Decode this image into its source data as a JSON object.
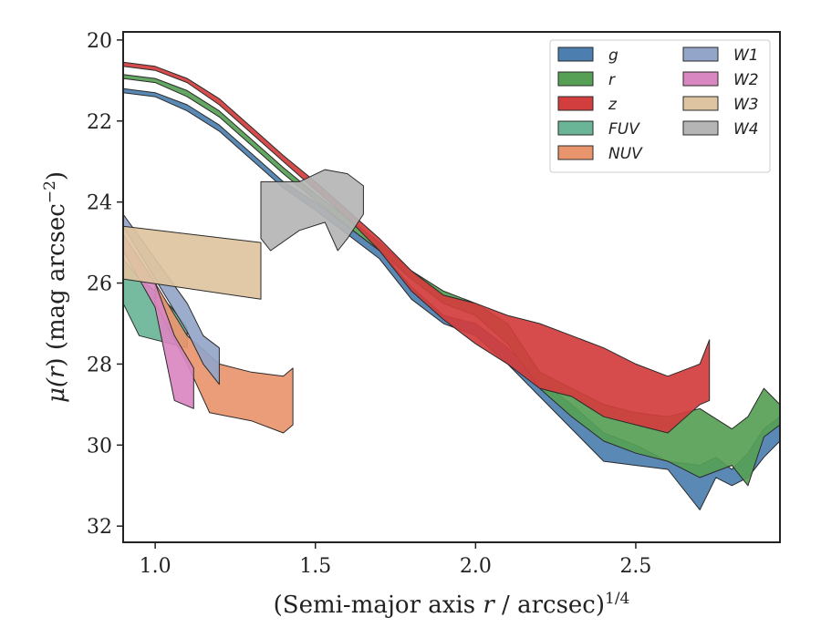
{
  "chart_data": {
    "type": "area",
    "xlabel_main": "(Semi-major axis ",
    "xlabel_var": "r",
    "xlabel_tail": " / arcsec)",
    "xlabel_exp": "1/4",
    "ylabel_main": "μ(",
    "ylabel_var": "r",
    "ylabel_tail": ") (mag arcsec",
    "ylabel_exp": "−2",
    "ylabel_close": ")",
    "xlim": [
      0.9,
      2.95
    ],
    "ylim": [
      32.4,
      19.8
    ],
    "y_inverted": true,
    "xticks": [
      1.0,
      1.5,
      2.0,
      2.5
    ],
    "xtick_labels": [
      "1.0",
      "1.5",
      "2.0",
      "2.5"
    ],
    "yticks": [
      20,
      22,
      24,
      26,
      28,
      30,
      32
    ],
    "ytick_labels": [
      "20",
      "22",
      "24",
      "26",
      "28",
      "30",
      "32"
    ],
    "grid": false,
    "legend_placement": "top-right",
    "series": [
      {
        "name": "g",
        "color": "#4c7fb0",
        "upper": [
          [
            0.9,
            21.2
          ],
          [
            1.0,
            21.3
          ],
          [
            1.1,
            21.6
          ],
          [
            1.2,
            22.1
          ],
          [
            1.3,
            22.8
          ],
          [
            1.4,
            23.5
          ],
          [
            1.5,
            24.0
          ],
          [
            1.6,
            24.6
          ],
          [
            1.7,
            25.2
          ],
          [
            1.8,
            26.1
          ],
          [
            1.9,
            26.8
          ],
          [
            2.0,
            27.0
          ],
          [
            2.1,
            27.6
          ],
          [
            2.2,
            28.4
          ],
          [
            2.3,
            29.0
          ],
          [
            2.4,
            29.7
          ],
          [
            2.5,
            30.0
          ],
          [
            2.6,
            30.4
          ],
          [
            2.7,
            30.5
          ],
          [
            2.75,
            30.3
          ],
          [
            2.8,
            30.6
          ],
          [
            2.85,
            30.2
          ],
          [
            2.9,
            29.6
          ],
          [
            2.95,
            29.3
          ]
        ],
        "lower": [
          [
            0.9,
            21.3
          ],
          [
            1.0,
            21.4
          ],
          [
            1.1,
            21.75
          ],
          [
            1.2,
            22.25
          ],
          [
            1.3,
            22.95
          ],
          [
            1.4,
            23.65
          ],
          [
            1.5,
            24.2
          ],
          [
            1.6,
            24.8
          ],
          [
            1.7,
            25.4
          ],
          [
            1.8,
            26.4
          ],
          [
            1.9,
            27.0
          ],
          [
            2.0,
            27.3
          ],
          [
            2.1,
            28.0
          ],
          [
            2.2,
            28.8
          ],
          [
            2.3,
            29.6
          ],
          [
            2.4,
            30.4
          ],
          [
            2.5,
            30.5
          ],
          [
            2.6,
            30.6
          ],
          [
            2.7,
            31.6
          ],
          [
            2.75,
            30.8
          ],
          [
            2.8,
            31.0
          ],
          [
            2.85,
            30.8
          ],
          [
            2.9,
            30.3
          ],
          [
            2.95,
            29.9
          ]
        ]
      },
      {
        "name": "r",
        "color": "#56a056",
        "upper": [
          [
            0.9,
            20.85
          ],
          [
            1.0,
            20.95
          ],
          [
            1.1,
            21.25
          ],
          [
            1.2,
            21.75
          ],
          [
            1.3,
            22.45
          ],
          [
            1.4,
            23.15
          ],
          [
            1.5,
            23.8
          ],
          [
            1.6,
            24.4
          ],
          [
            1.7,
            25.0
          ],
          [
            1.8,
            25.7
          ],
          [
            1.9,
            26.2
          ],
          [
            2.0,
            26.5
          ],
          [
            2.1,
            27.0
          ],
          [
            2.2,
            28.2
          ],
          [
            2.3,
            28.6
          ],
          [
            2.4,
            29.0
          ],
          [
            2.5,
            29.2
          ],
          [
            2.6,
            29.3
          ],
          [
            2.7,
            29.1
          ],
          [
            2.8,
            29.6
          ],
          [
            2.85,
            29.3
          ],
          [
            2.9,
            28.6
          ],
          [
            2.95,
            29.0
          ]
        ],
        "lower": [
          [
            0.9,
            20.95
          ],
          [
            1.0,
            21.05
          ],
          [
            1.1,
            21.4
          ],
          [
            1.2,
            21.9
          ],
          [
            1.3,
            22.6
          ],
          [
            1.4,
            23.3
          ],
          [
            1.5,
            23.95
          ],
          [
            1.6,
            24.6
          ],
          [
            1.7,
            25.2
          ],
          [
            1.8,
            25.9
          ],
          [
            1.9,
            26.5
          ],
          [
            2.0,
            26.8
          ],
          [
            2.1,
            27.5
          ],
          [
            2.2,
            28.6
          ],
          [
            2.3,
            29.3
          ],
          [
            2.4,
            29.9
          ],
          [
            2.5,
            30.2
          ],
          [
            2.6,
            30.4
          ],
          [
            2.7,
            30.8
          ],
          [
            2.8,
            30.5
          ],
          [
            2.85,
            31.0
          ],
          [
            2.9,
            29.8
          ],
          [
            2.95,
            29.5
          ]
        ]
      },
      {
        "name": "z",
        "color": "#d23d3d",
        "upper": [
          [
            0.9,
            20.55
          ],
          [
            1.0,
            20.65
          ],
          [
            1.1,
            20.95
          ],
          [
            1.2,
            21.45
          ],
          [
            1.3,
            22.15
          ],
          [
            1.4,
            22.85
          ],
          [
            1.5,
            23.5
          ],
          [
            1.6,
            24.2
          ],
          [
            1.7,
            24.9
          ],
          [
            1.8,
            25.7
          ],
          [
            1.9,
            26.3
          ],
          [
            2.0,
            26.5
          ],
          [
            2.1,
            26.8
          ],
          [
            2.2,
            27.0
          ],
          [
            2.3,
            27.3
          ],
          [
            2.4,
            27.6
          ],
          [
            2.5,
            28.0
          ],
          [
            2.6,
            28.3
          ],
          [
            2.7,
            28.0
          ],
          [
            2.73,
            27.4
          ]
        ],
        "lower": [
          [
            0.9,
            20.65
          ],
          [
            1.0,
            20.75
          ],
          [
            1.1,
            21.05
          ],
          [
            1.2,
            21.6
          ],
          [
            1.3,
            22.3
          ],
          [
            1.4,
            23.0
          ],
          [
            1.5,
            23.7
          ],
          [
            1.6,
            24.4
          ],
          [
            1.7,
            25.2
          ],
          [
            1.8,
            26.2
          ],
          [
            1.9,
            26.9
          ],
          [
            2.0,
            27.5
          ],
          [
            2.1,
            28.0
          ],
          [
            2.2,
            28.6
          ],
          [
            2.3,
            28.8
          ],
          [
            2.4,
            29.3
          ],
          [
            2.5,
            29.5
          ],
          [
            2.6,
            29.7
          ],
          [
            2.7,
            29.0
          ],
          [
            2.73,
            28.9
          ]
        ]
      },
      {
        "name": "FUV",
        "color": "#6ab597",
        "upper": [
          [
            0.9,
            25.4
          ],
          [
            0.95,
            25.9
          ],
          [
            1.0,
            26.2
          ],
          [
            1.05,
            26.6
          ],
          [
            1.1,
            27.1
          ]
        ],
        "lower": [
          [
            0.9,
            26.5
          ],
          [
            0.95,
            27.3
          ],
          [
            1.0,
            27.4
          ],
          [
            1.05,
            27.5
          ],
          [
            1.1,
            27.6
          ]
        ]
      },
      {
        "name": "NUV",
        "color": "#e8956d",
        "upper": [
          [
            1.0,
            26.0
          ],
          [
            1.1,
            27.3
          ],
          [
            1.2,
            28.0
          ],
          [
            1.3,
            28.2
          ],
          [
            1.4,
            28.3
          ],
          [
            1.43,
            28.1
          ]
        ],
        "lower": [
          [
            1.0,
            26.5
          ],
          [
            1.1,
            28.0
          ],
          [
            1.17,
            29.2
          ],
          [
            1.3,
            29.4
          ],
          [
            1.4,
            29.7
          ],
          [
            1.43,
            29.5
          ]
        ]
      },
      {
        "name": "W1",
        "color": "#93a5c8",
        "upper": [
          [
            0.9,
            24.3
          ],
          [
            1.0,
            25.4
          ],
          [
            1.1,
            26.5
          ],
          [
            1.15,
            27.3
          ],
          [
            1.2,
            27.6
          ]
        ],
        "lower": [
          [
            0.9,
            24.6
          ],
          [
            1.0,
            25.9
          ],
          [
            1.1,
            27.2
          ],
          [
            1.15,
            28.0
          ],
          [
            1.2,
            28.5
          ]
        ]
      },
      {
        "name": "W2",
        "color": "#d987c0",
        "upper": [
          [
            0.9,
            24.8
          ],
          [
            1.0,
            26.0
          ],
          [
            1.06,
            27.3
          ],
          [
            1.12,
            28.1
          ]
        ],
        "lower": [
          [
            0.9,
            25.2
          ],
          [
            1.0,
            26.6
          ],
          [
            1.06,
            28.9
          ],
          [
            1.12,
            29.1
          ]
        ]
      },
      {
        "name": "W3",
        "color": "#dec4a0",
        "upper": [
          [
            0.9,
            24.6
          ],
          [
            1.33,
            25.0
          ]
        ],
        "lower": [
          [
            0.9,
            25.9
          ],
          [
            1.33,
            26.4
          ]
        ]
      },
      {
        "name": "W4",
        "color": "#b5b5b5",
        "upper": [
          [
            1.33,
            23.5
          ],
          [
            1.45,
            23.5
          ],
          [
            1.53,
            23.2
          ],
          [
            1.6,
            23.3
          ],
          [
            1.65,
            23.6
          ],
          [
            1.65,
            23.8
          ]
        ],
        "lower": [
          [
            1.33,
            24.9
          ],
          [
            1.36,
            25.2
          ],
          [
            1.45,
            24.7
          ],
          [
            1.53,
            24.5
          ],
          [
            1.57,
            25.2
          ],
          [
            1.6,
            24.9
          ],
          [
            1.65,
            24.3
          ]
        ]
      }
    ],
    "legend": [
      {
        "label": "g",
        "color": "#4c7fb0"
      },
      {
        "label": "r",
        "color": "#56a056"
      },
      {
        "label": "z",
        "color": "#d23d3d"
      },
      {
        "label": "FUV",
        "color": "#6ab597"
      },
      {
        "label": "NUV",
        "color": "#e8956d"
      },
      {
        "label": "W1",
        "color": "#93a5c8"
      },
      {
        "label": "W2",
        "color": "#d987c0"
      },
      {
        "label": "W3",
        "color": "#dec4a0"
      },
      {
        "label": "W4",
        "color": "#b5b5b5"
      }
    ]
  }
}
